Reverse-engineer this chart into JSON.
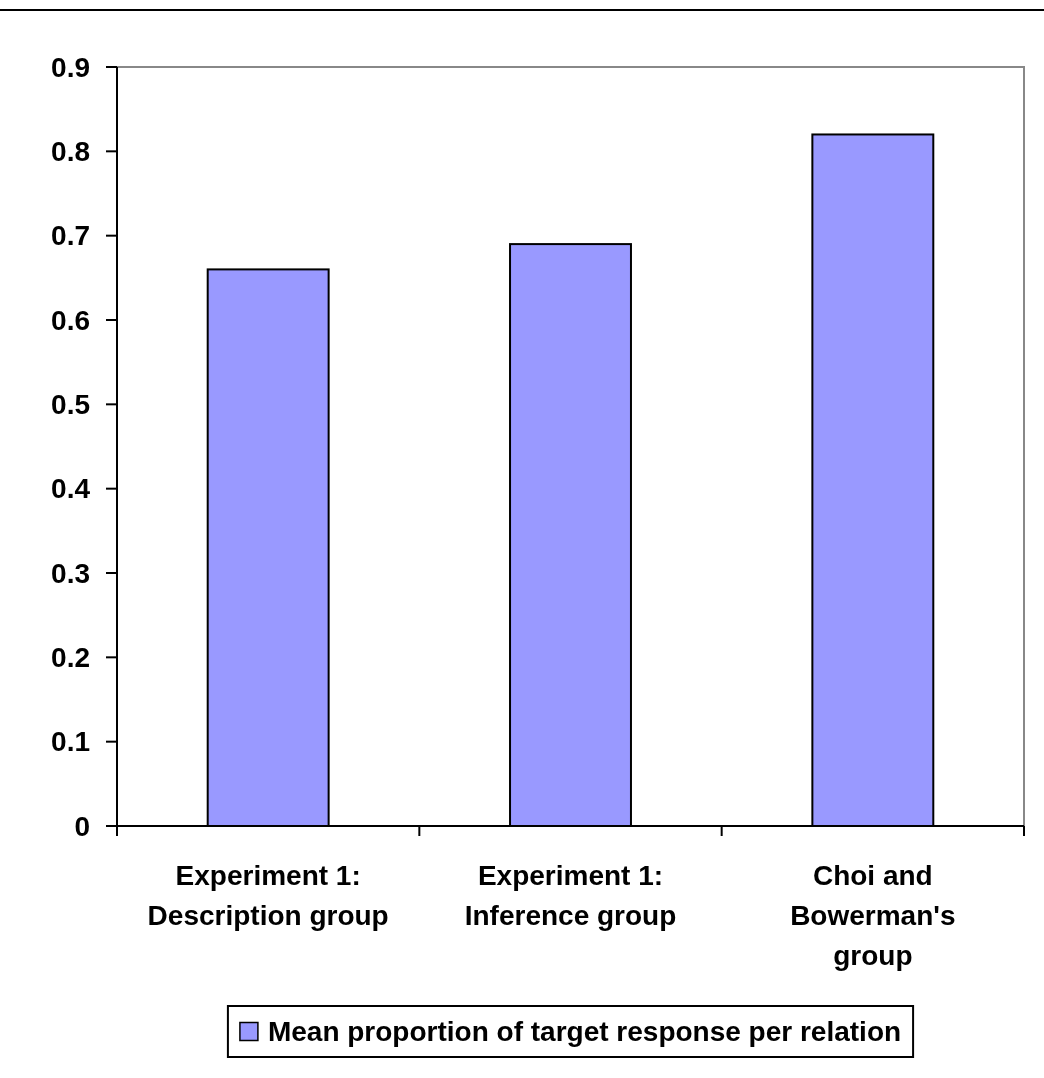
{
  "chart_data": {
    "type": "bar",
    "categories": [
      "Experiment 1:\nDescription group",
      "Experiment 1:\nInference group",
      "Choi and\nBowerman's\ngroup"
    ],
    "series": [
      {
        "name": "Mean proportion of target response per relation",
        "color": "#9999ff",
        "values": [
          0.66,
          0.69,
          0.82
        ]
      }
    ],
    "ylim": [
      0,
      0.9
    ],
    "yticks": [
      0,
      0.1,
      0.2,
      0.3,
      0.4,
      0.5,
      0.6,
      0.7,
      0.8,
      0.9
    ],
    "legend": "bottom"
  }
}
